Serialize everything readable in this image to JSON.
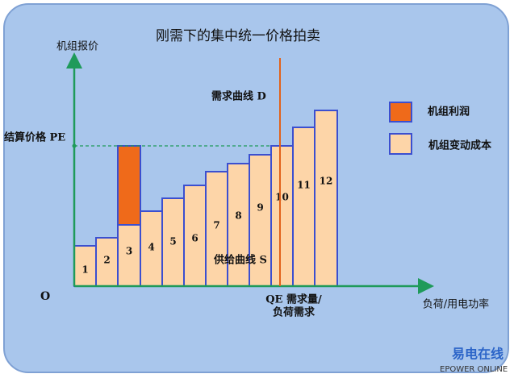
{
  "title": "刚需下的集中统一价格拍卖",
  "y_axis_label": "机组报价",
  "x_axis_label": "负荷/用电功率",
  "origin": "O",
  "pe_label": "结算价格 PE",
  "demand_label": "需求曲线 D",
  "supply_label": "供给曲线 S",
  "qe_label": [
    "QE 需求量/",
    "负荷需求"
  ],
  "legend": [
    {
      "label": "机组利润"
    },
    {
      "label": "机组变动成本"
    }
  ],
  "bars": [
    "1",
    "2",
    "3",
    "4",
    "5",
    "6",
    "7",
    "8",
    "9",
    "10",
    "11",
    "12"
  ],
  "watermark": {
    "brand": "易电在线",
    "sub": "EPOWER ONLINE"
  }
}
